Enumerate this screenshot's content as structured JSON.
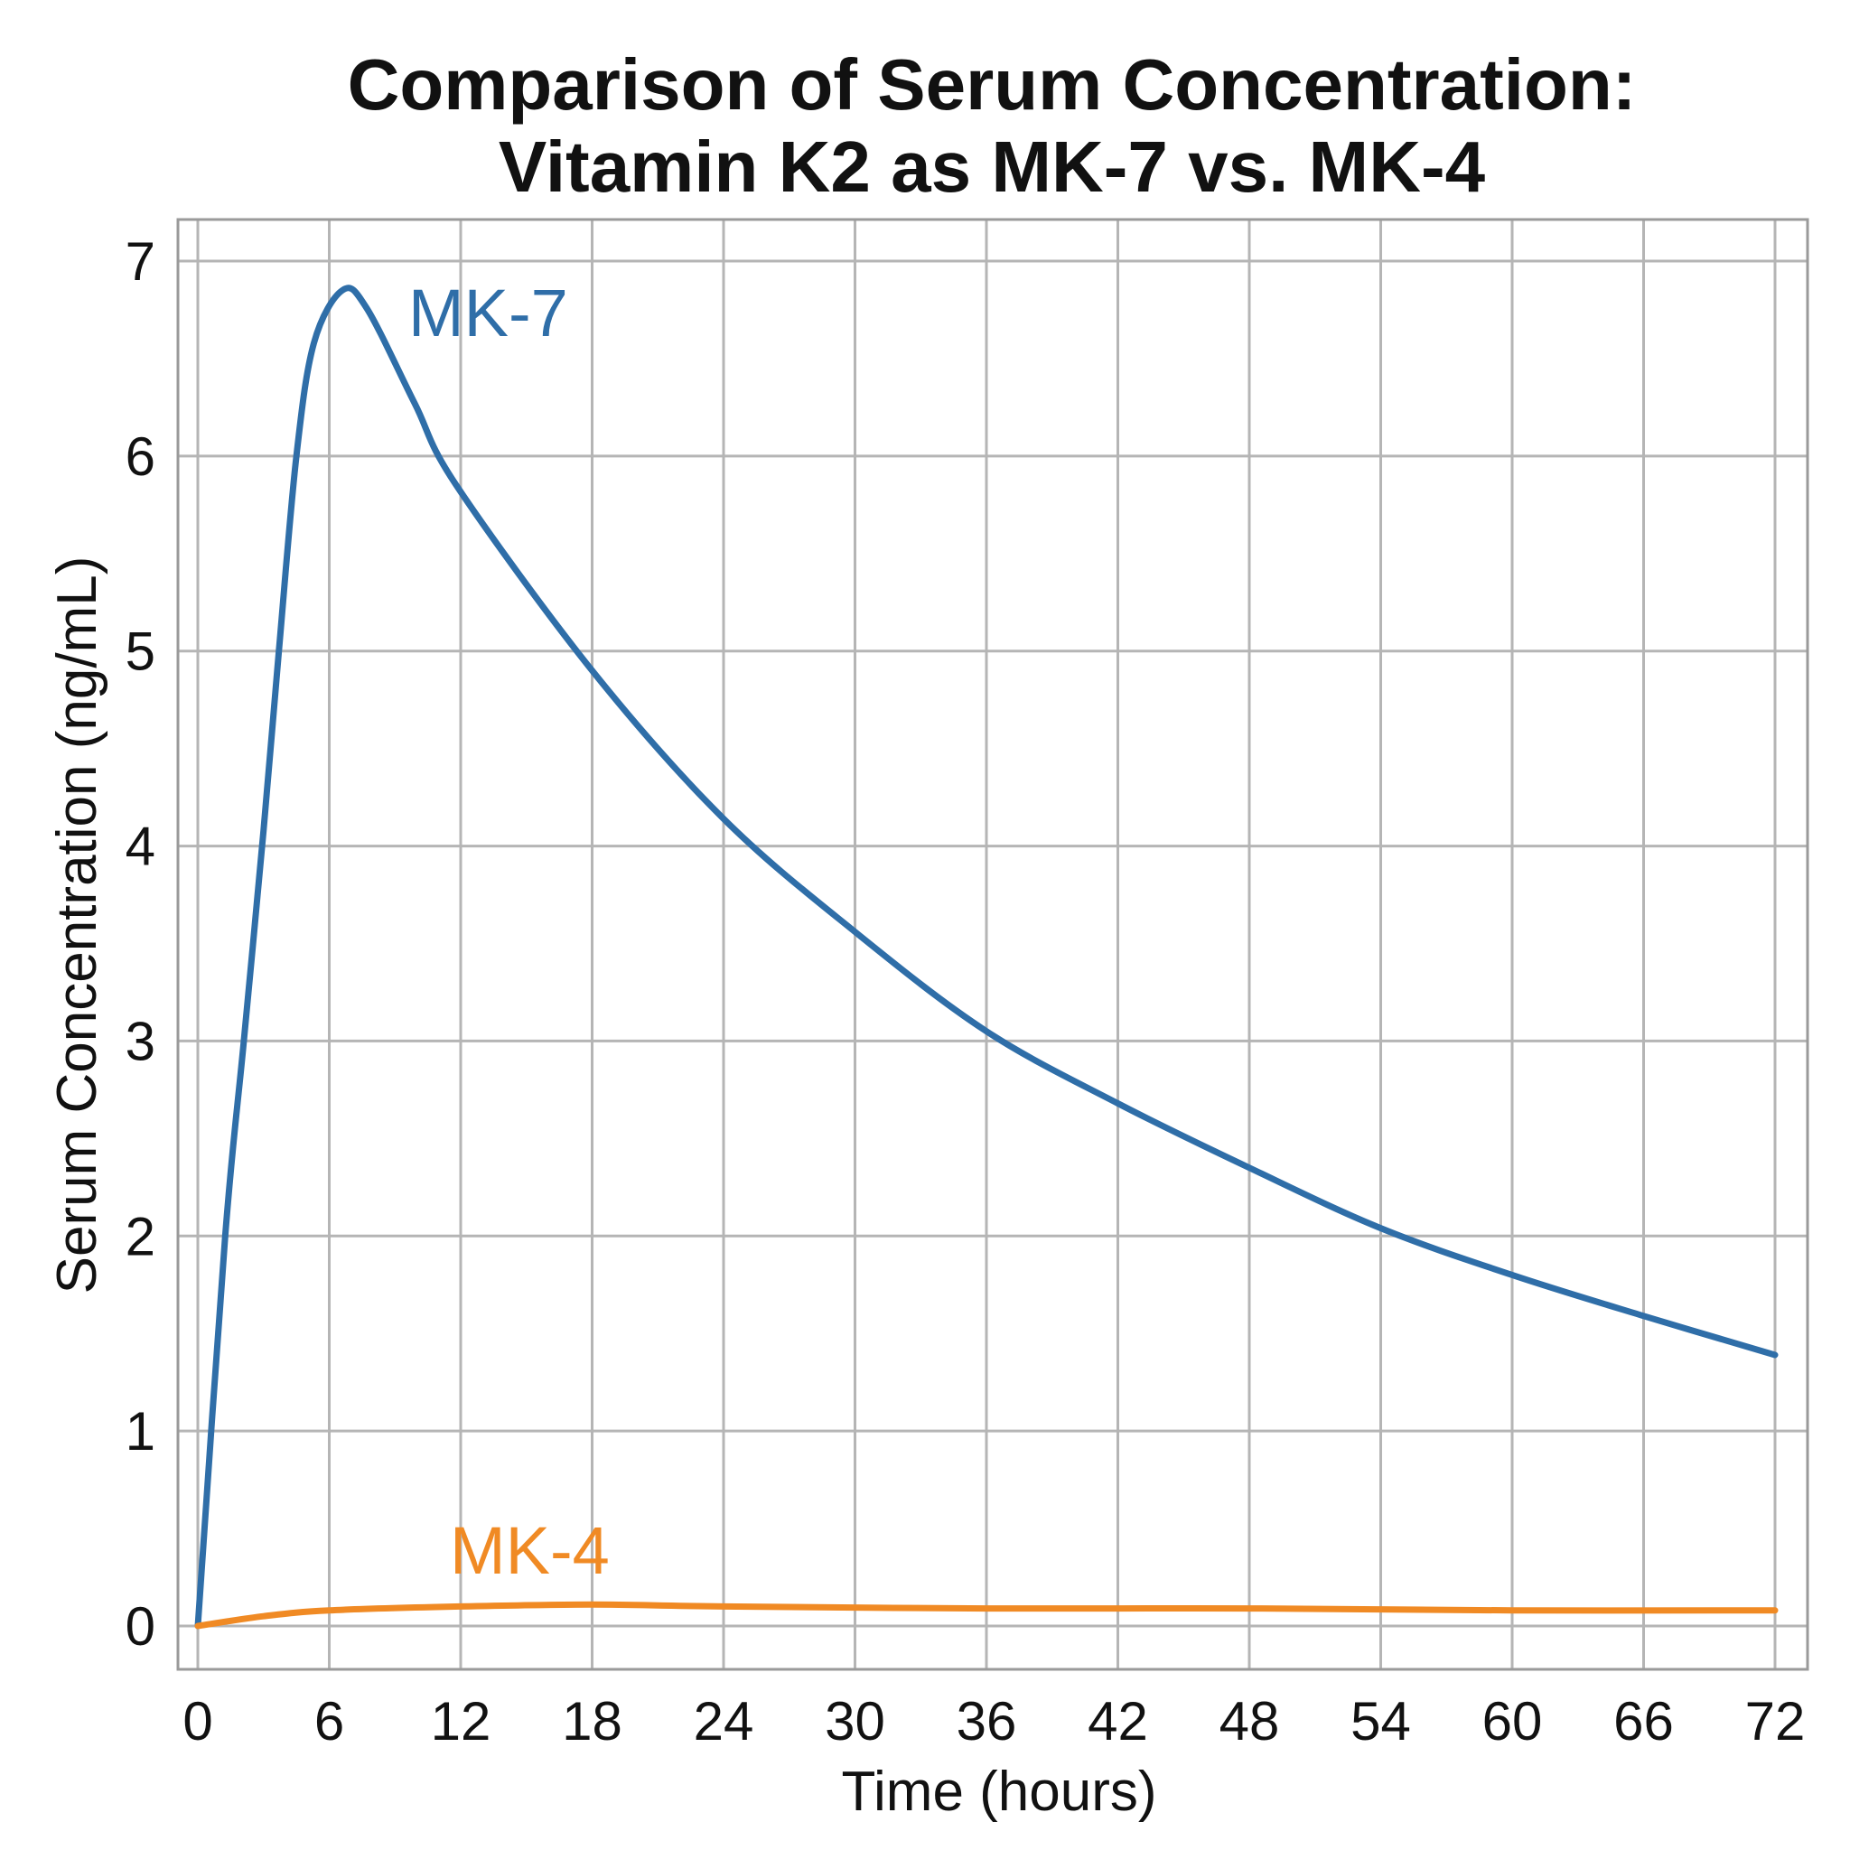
{
  "chart_data": {
    "type": "line",
    "title": [
      "Comparison of Serum Concentration:",
      "Vitamin K2 as MK-7 vs. MK-4"
    ],
    "xlabel": "Time (hours)",
    "ylabel": "Serum Concentration (ng/mL)",
    "xlim": [
      0,
      72
    ],
    "ylim": [
      0,
      7
    ],
    "xticks": [
      0,
      6,
      12,
      18,
      24,
      30,
      36,
      42,
      48,
      54,
      60,
      66,
      72
    ],
    "yticks": [
      0,
      1,
      2,
      3,
      4,
      5,
      6,
      7
    ],
    "grid": true,
    "legend": "inline labels",
    "series": [
      {
        "name": "MK-7",
        "color": "#2f6ea8",
        "x": [
          0,
          1.25,
          2.1,
          3.0,
          3.7,
          4.5,
          5.3,
          6.6,
          7.7,
          9.9,
          11.8,
          18,
          24,
          30,
          36,
          42,
          48,
          54,
          60,
          66,
          72
        ],
        "y": [
          0,
          2.0,
          3.0,
          4.08,
          5.0,
          6.0,
          6.58,
          6.85,
          6.76,
          6.27,
          5.85,
          4.9,
          4.14,
          3.56,
          3.05,
          2.68,
          2.35,
          2.04,
          1.8,
          1.59,
          1.39
        ]
      },
      {
        "name": "MK-4",
        "color": "#f08a24",
        "x": [
          0,
          3,
          6,
          12,
          18,
          24,
          36,
          48,
          60,
          72
        ],
        "y": [
          0,
          0.05,
          0.08,
          0.1,
          0.11,
          0.1,
          0.09,
          0.09,
          0.08,
          0.08
        ]
      }
    ]
  }
}
